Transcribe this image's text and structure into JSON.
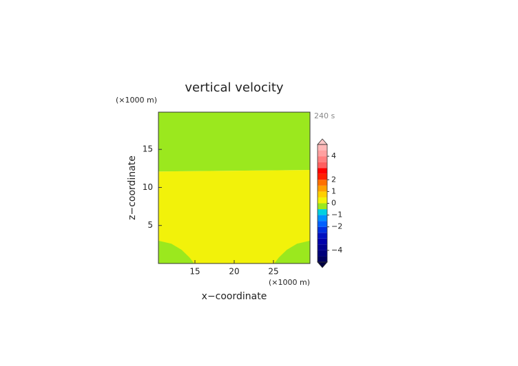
{
  "chart_data": {
    "type": "contourf",
    "title": "vertical velocity",
    "x_label": "x−coordinate",
    "y_label": "z−coordinate",
    "x_unit": "(×1000 m)",
    "y_unit": "(×1000 m)",
    "time_label": "240 s",
    "xlim": [
      10.35,
      29.65
    ],
    "ylim": [
      0,
      19.9
    ],
    "xticks": [
      15,
      20,
      25
    ],
    "yticks": [
      5,
      10,
      15
    ],
    "regions": [
      {
        "color": "#f2f20a",
        "x": [
          10.35,
          29.65,
          29.65,
          10.35
        ],
        "y": [
          0,
          0,
          12.3,
          12.1
        ]
      },
      {
        "color": "#9be81e",
        "x": [
          10.35,
          20,
          29.65,
          29.65,
          10.35
        ],
        "y": [
          12.1,
          12.2,
          12.3,
          19.9,
          19.9
        ]
      },
      {
        "color": "#9be81e",
        "x": [
          10.35,
          10.35,
          12,
          13.3,
          14.3,
          14.9
        ],
        "y": [
          0,
          3.0,
          2.6,
          1.8,
          0.8,
          0
        ]
      },
      {
        "color": "#9be81e",
        "x": [
          25.1,
          25.7,
          26.7,
          28,
          29.65,
          29.65
        ],
        "y": [
          0,
          0.8,
          1.8,
          2.6,
          3.0,
          0
        ]
      }
    ],
    "colorbar": {
      "levels": [
        -5,
        -4.5,
        -4,
        -3.5,
        -3,
        -2.5,
        -2,
        -1.5,
        -1,
        -0.5,
        0,
        0.5,
        1,
        1.5,
        2,
        2.5,
        3,
        3.5,
        4,
        4.5,
        5
      ],
      "colors": [
        "#000060",
        "#00007a",
        "#000090",
        "#0000aa",
        "#0010c0",
        "#0030e0",
        "#0060ff",
        "#0090ff",
        "#00d0e0",
        "#9be81e",
        "#f2f20a",
        "#ffd000",
        "#ffa000",
        "#ff7000",
        "#ff2000",
        "#ff0000",
        "#ff6060",
        "#ff8080",
        "#ffa0a0",
        "#ffb8b8"
      ],
      "over_color": "#ffc8c8",
      "under_color": "#000040",
      "ticks": [
        4,
        2,
        1,
        0,
        {
          "value": -1,
          "label": "−1"
        },
        {
          "value": -2,
          "label": "−2"
        },
        {
          "value": -4,
          "label": "−4"
        }
      ]
    }
  }
}
